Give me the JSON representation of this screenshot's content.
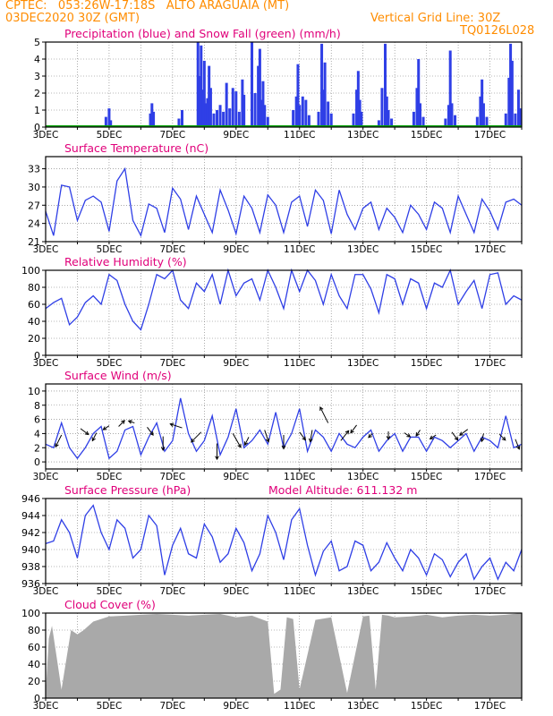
{
  "header": {
    "line1": "CPTEC:   053:26W-17:18S   ALTO ARAGUAIA (MT)",
    "line2_left": "03DEC2020 30Z (GMT)",
    "line2_right": "Vertical Grid Line: 30Z",
    "line3_right": "TQ0126L028"
  },
  "x_ticks": [
    "3DEC",
    "5DEC",
    "7DEC",
    "9DEC",
    "11DEC",
    "13DEC",
    "15DEC",
    "17DEC"
  ],
  "colors": {
    "header": "#ff8c00",
    "title": "#e0007a",
    "series": "#2f3fe6",
    "snow": "#00a000",
    "cloud": "#a9a9a9",
    "wind_arrow": "#000000"
  },
  "chart_data": [
    {
      "id": "precip",
      "type": "bar",
      "title": "Precipitation (blue) and Snow Fall (green) (mm/h)",
      "ylim": [
        0,
        5
      ],
      "yticks": [
        "0",
        "1",
        "2",
        "3",
        "4",
        "5"
      ],
      "series": [
        {
          "name": "Precipitation",
          "color": "#2f3fe6",
          "x": [
            1.9,
            2.0,
            2.05,
            3.3,
            3.35,
            3.4,
            4.2,
            4.3,
            4.8,
            4.85,
            4.9,
            4.95,
            5.0,
            5.05,
            5.1,
            5.15,
            5.2,
            5.3,
            5.4,
            5.5,
            5.6,
            5.7,
            5.8,
            5.9,
            6.0,
            6.1,
            6.2,
            6.25,
            6.5,
            6.6,
            6.7,
            6.75,
            6.8,
            6.85,
            6.9,
            7.0,
            7.8,
            7.9,
            7.95,
            8.0,
            8.1,
            8.2,
            8.3,
            8.6,
            8.7,
            8.75,
            8.8,
            8.9,
            9.0,
            9.7,
            9.8,
            9.85,
            9.9,
            9.95,
            10.5,
            10.6,
            10.7,
            10.75,
            10.8,
            10.9,
            11.6,
            11.7,
            11.75,
            11.8,
            11.9,
            12.6,
            12.7,
            12.75,
            12.8,
            12.9,
            13.6,
            13.7,
            13.75,
            13.8,
            13.9,
            14.5,
            14.6,
            14.65,
            14.7,
            14.8,
            14.9,
            14.95
          ],
          "values": [
            0.6,
            1.1,
            0.4,
            0.8,
            1.4,
            0.9,
            0.5,
            1.0,
            5.0,
            3.0,
            4.8,
            2.2,
            3.9,
            1.4,
            1.7,
            3.6,
            2.3,
            0.8,
            1.0,
            1.3,
            0.9,
            2.6,
            1.1,
            2.3,
            2.1,
            0.9,
            2.8,
            1.9,
            5.0,
            2.0,
            3.6,
            4.6,
            1.6,
            2.7,
            1.3,
            0.6,
            1.0,
            1.8,
            3.7,
            1.3,
            1.8,
            1.6,
            0.7,
            0.9,
            4.9,
            2.2,
            3.8,
            1.5,
            0.8,
            0.8,
            2.2,
            3.3,
            1.6,
            0.9,
            0.4,
            2.3,
            4.9,
            1.8,
            1.0,
            0.5,
            0.9,
            2.3,
            4.0,
            1.4,
            0.6,
            0.5,
            1.3,
            4.5,
            1.4,
            0.7,
            0.6,
            1.8,
            2.8,
            1.4,
            0.6,
            0.8,
            2.9,
            4.9,
            3.9,
            0.8,
            2.2,
            1.1
          ]
        },
        {
          "name": "Snow Fall",
          "color": "#00a000",
          "x": [
            0,
            15
          ],
          "values": [
            0,
            0
          ]
        }
      ]
    },
    {
      "id": "temp",
      "type": "line",
      "title": "Surface Temperature (nC)",
      "ylim": [
        21,
        35
      ],
      "yticks": [
        "21",
        "24",
        "27",
        "30",
        "33"
      ],
      "series": [
        {
          "name": "Temperature",
          "x": [
            0,
            0.25,
            0.5,
            0.75,
            1.0,
            1.25,
            1.5,
            1.75,
            2.0,
            2.25,
            2.5,
            2.75,
            3.0,
            3.25,
            3.5,
            3.75,
            4.0,
            4.25,
            4.5,
            4.75,
            5.0,
            5.25,
            5.5,
            5.75,
            6.0,
            6.25,
            6.5,
            6.75,
            7.0,
            7.25,
            7.5,
            7.75,
            8.0,
            8.25,
            8.5,
            8.75,
            9.0,
            9.25,
            9.5,
            9.75,
            10.0,
            10.25,
            10.5,
            10.75,
            11.0,
            11.25,
            11.5,
            11.75,
            12.0,
            12.25,
            12.5,
            12.75,
            13.0,
            13.25,
            13.5,
            13.75,
            14.0,
            14.25,
            14.5,
            14.75,
            15.0
          ],
          "values": [
            26.0,
            22.0,
            30.3,
            30.0,
            24.5,
            27.8,
            28.5,
            27.5,
            22.7,
            31.0,
            33.0,
            24.5,
            22.0,
            27.2,
            26.5,
            22.5,
            29.8,
            28.0,
            23.0,
            28.5,
            25.5,
            22.5,
            29.5,
            26.2,
            22.3,
            28.5,
            26.5,
            22.5,
            28.7,
            27.0,
            22.5,
            27.5,
            28.5,
            23.5,
            29.5,
            27.8,
            22.3,
            29.5,
            25.5,
            23.0,
            26.5,
            27.5,
            23.0,
            26.5,
            25.0,
            22.5,
            27.0,
            25.5,
            23.0,
            27.5,
            26.5,
            22.5,
            28.5,
            25.5,
            22.5,
            28.0,
            26.0,
            23.0,
            27.5,
            28.0,
            27.0
          ]
        }
      ]
    },
    {
      "id": "rh",
      "type": "line",
      "title": "Relative Humidity (%)",
      "ylim": [
        0,
        100
      ],
      "yticks": [
        "0",
        "20",
        "40",
        "60",
        "80",
        "100"
      ],
      "series": [
        {
          "name": "Relative Humidity",
          "x": [
            0,
            0.25,
            0.5,
            0.75,
            1.0,
            1.25,
            1.5,
            1.75,
            2.0,
            2.25,
            2.5,
            2.75,
            3.0,
            3.25,
            3.5,
            3.75,
            4.0,
            4.25,
            4.5,
            4.75,
            5.0,
            5.25,
            5.5,
            5.75,
            6.0,
            6.25,
            6.5,
            6.75,
            7.0,
            7.25,
            7.5,
            7.75,
            8.0,
            8.25,
            8.5,
            8.75,
            9.0,
            9.25,
            9.5,
            9.75,
            10.0,
            10.25,
            10.5,
            10.75,
            11.0,
            11.25,
            11.5,
            11.75,
            12.0,
            12.25,
            12.5,
            12.75,
            13.0,
            13.25,
            13.5,
            13.75,
            14.0,
            14.25,
            14.5,
            14.75,
            15.0
          ],
          "values": [
            55,
            62,
            67,
            36,
            45,
            62,
            70,
            60,
            95,
            88,
            60,
            40,
            30,
            60,
            95,
            90,
            100,
            65,
            55,
            85,
            75,
            95,
            60,
            100,
            70,
            85,
            90,
            65,
            100,
            80,
            55,
            100,
            75,
            100,
            88,
            60,
            95,
            70,
            55,
            95,
            95,
            78,
            50,
            95,
            90,
            60,
            90,
            85,
            55,
            85,
            80,
            100,
            60,
            75,
            88,
            55,
            95,
            97,
            60,
            70,
            65
          ]
        }
      ]
    },
    {
      "id": "wind",
      "type": "line",
      "title": "Surface Wind (m/s)",
      "ylim": [
        -1,
        11
      ],
      "yticks": [
        "0",
        "2",
        "4",
        "6",
        "8",
        "10"
      ],
      "series": [
        {
          "name": "Wind Speed",
          "x": [
            0,
            0.25,
            0.5,
            0.75,
            1.0,
            1.25,
            1.5,
            1.75,
            2.0,
            2.25,
            2.5,
            2.75,
            3.0,
            3.25,
            3.5,
            3.75,
            4.0,
            4.25,
            4.5,
            4.75,
            5.0,
            5.25,
            5.5,
            5.75,
            6.0,
            6.25,
            6.5,
            6.75,
            7.0,
            7.25,
            7.5,
            7.75,
            8.0,
            8.25,
            8.5,
            8.75,
            9.0,
            9.25,
            9.5,
            9.75,
            10.0,
            10.25,
            10.5,
            10.75,
            11.0,
            11.25,
            11.5,
            11.75,
            12.0,
            12.25,
            12.5,
            12.75,
            13.0,
            13.25,
            13.5,
            13.75,
            14.0,
            14.25,
            14.5,
            14.75,
            15.0
          ],
          "values": [
            2.5,
            2.0,
            5.5,
            2.0,
            0.5,
            2.0,
            4.0,
            5.0,
            0.5,
            1.5,
            4.5,
            5.0,
            1.0,
            3.5,
            5.5,
            1.5,
            3.0,
            9.0,
            4.0,
            1.5,
            3.0,
            6.5,
            1.0,
            3.5,
            7.5,
            2.0,
            3.0,
            4.5,
            2.5,
            7.0,
            2.0,
            4.0,
            7.5,
            1.5,
            4.5,
            3.5,
            1.5,
            4.0,
            2.5,
            2.0,
            3.5,
            4.5,
            1.5,
            3.0,
            4.0,
            1.5,
            3.5,
            3.5,
            1.5,
            3.5,
            3.0,
            2.0,
            3.0,
            4.0,
            1.5,
            3.5,
            3.0,
            2.0,
            6.5,
            2.0,
            2.5
          ]
        }
      ],
      "arrows": {
        "x": [
          0.5,
          1.1,
          1.6,
          2.0,
          2.3,
          2.8,
          3.2,
          3.7,
          4.3,
          4.9,
          5.4,
          5.9,
          6.4,
          6.9,
          7.5,
          8.0,
          8.4,
          8.9,
          9.3,
          9.8,
          10.3,
          10.8,
          11.3,
          11.8,
          12.3,
          12.8,
          13.3,
          13.8,
          14.3,
          14.8
        ],
        "y": [
          3.8,
          4.7,
          4.1,
          5.1,
          5.0,
          5.5,
          4.9,
          3.6,
          4.8,
          4.2,
          2.6,
          4.0,
          3.5,
          4.5,
          3.8,
          4.2,
          4.5,
          5.5,
          3.0,
          5.2,
          4.0,
          4.3,
          4.1,
          4.5,
          3.8,
          4.2,
          4.6,
          4.0,
          3.9,
          3.2
        ],
        "u": [
          -3,
          4,
          -2,
          -3,
          3,
          -3,
          3,
          0,
          -6,
          -5,
          0,
          4,
          -2,
          2,
          0,
          3,
          -1,
          -4,
          4,
          -3,
          -2,
          0,
          3,
          -2,
          -3,
          3,
          -4,
          -1,
          3,
          2
        ],
        "v": [
          -6,
          -3,
          -4,
          -2,
          3,
          1,
          -4,
          -7,
          2,
          -5,
          -8,
          -7,
          -4,
          -6,
          -7,
          -4,
          -6,
          8,
          5,
          -4,
          -2,
          -4,
          -2,
          -3,
          -2,
          -4,
          -3,
          -4,
          -3,
          -5
        ]
      }
    },
    {
      "id": "pres",
      "type": "line",
      "title": "Surface Pressure (hPa)",
      "annotation": "Model Altitude: 611.132  m",
      "ylim": [
        936,
        946
      ],
      "yticks": [
        "936",
        "938",
        "940",
        "942",
        "944",
        "946"
      ],
      "series": [
        {
          "name": "Pressure",
          "x": [
            0,
            0.25,
            0.5,
            0.75,
            1.0,
            1.25,
            1.5,
            1.75,
            2.0,
            2.25,
            2.5,
            2.75,
            3.0,
            3.25,
            3.5,
            3.75,
            4.0,
            4.25,
            4.5,
            4.75,
            5.0,
            5.25,
            5.5,
            5.75,
            6.0,
            6.25,
            6.5,
            6.75,
            7.0,
            7.25,
            7.5,
            7.75,
            8.0,
            8.25,
            8.5,
            8.75,
            9.0,
            9.25,
            9.5,
            9.75,
            10.0,
            10.25,
            10.5,
            10.75,
            11.0,
            11.25,
            11.5,
            11.75,
            12.0,
            12.25,
            12.5,
            12.75,
            13.0,
            13.25,
            13.5,
            13.75,
            14.0,
            14.25,
            14.5,
            14.75,
            15.0
          ],
          "values": [
            940.7,
            941.0,
            943.5,
            942.0,
            939.0,
            944.0,
            945.2,
            942.0,
            940.0,
            943.5,
            942.5,
            939.0,
            940.0,
            944.0,
            942.8,
            937.0,
            940.5,
            942.5,
            939.5,
            939.0,
            943.0,
            941.5,
            938.5,
            939.5,
            942.5,
            940.8,
            937.5,
            939.5,
            944.0,
            942.0,
            938.8,
            943.5,
            944.8,
            940.5,
            937.0,
            939.8,
            941.0,
            937.5,
            938.0,
            941.0,
            940.5,
            937.5,
            938.5,
            940.8,
            939.0,
            937.5,
            940.0,
            939.0,
            937.0,
            939.5,
            938.8,
            936.8,
            938.5,
            939.5,
            936.5,
            938.0,
            939.0,
            936.5,
            938.5,
            937.5,
            940.0
          ]
        }
      ]
    },
    {
      "id": "cloud",
      "type": "area",
      "title": "Cloud Cover (%)",
      "ylim": [
        0,
        100
      ],
      "yticks": [
        "0",
        "20",
        "40",
        "60",
        "80",
        "100"
      ],
      "series": [
        {
          "name": "Cloud Cover",
          "x": [
            0,
            0.1,
            0.2,
            0.3,
            0.5,
            0.8,
            1.0,
            1.2,
            1.5,
            2.0,
            2.5,
            3.0,
            3.5,
            4.0,
            4.5,
            5.0,
            5.5,
            6.0,
            6.5,
            7.0,
            7.2,
            7.4,
            7.6,
            7.8,
            8.0,
            8.5,
            9.0,
            9.5,
            10.0,
            10.2,
            10.4,
            10.6,
            10.8,
            11.0,
            11.5,
            12.0,
            12.5,
            13.0,
            13.5,
            14.0,
            14.5,
            15.0
          ],
          "values": [
            5,
            70,
            85,
            60,
            10,
            80,
            75,
            80,
            90,
            96,
            97,
            98,
            99,
            98,
            97,
            98,
            99,
            95,
            97,
            90,
            5,
            10,
            95,
            93,
            10,
            92,
            95,
            6,
            96,
            97,
            10,
            98,
            97,
            95,
            96,
            98,
            95,
            97,
            98,
            97,
            98,
            100
          ]
        }
      ]
    }
  ]
}
